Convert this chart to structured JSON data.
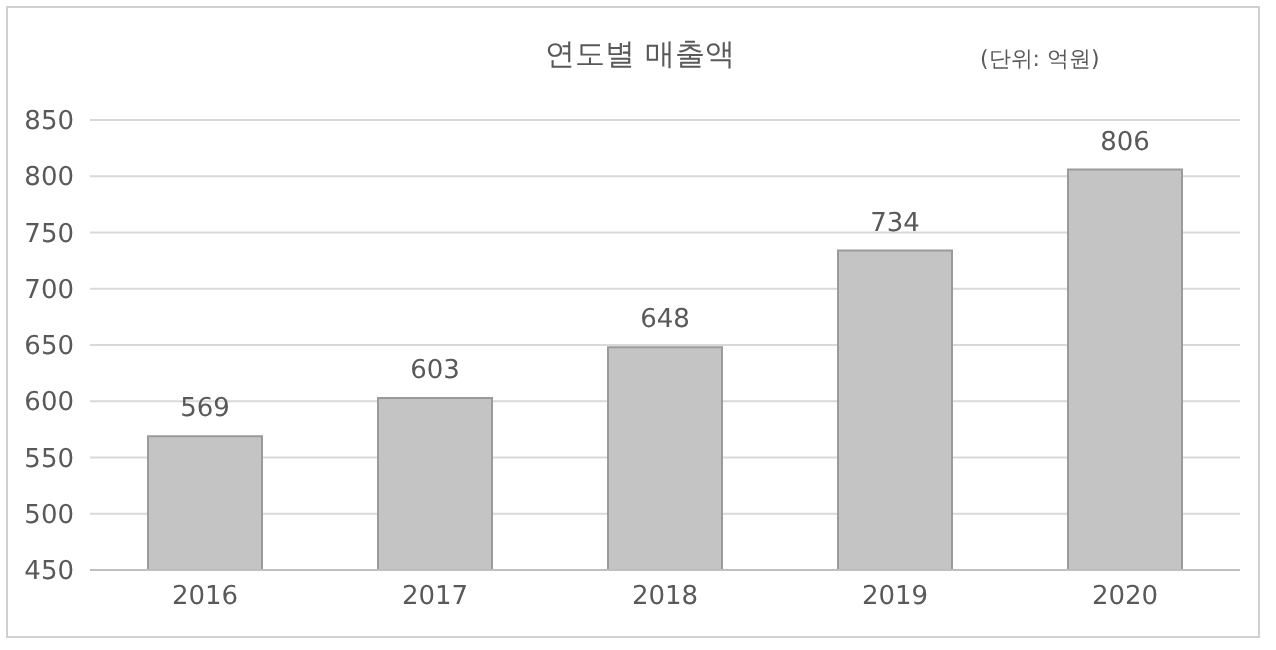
{
  "chart_data": {
    "type": "bar",
    "title": "연도별 매출액",
    "annotations": [
      "(단위: 억원)"
    ],
    "categories": [
      "2016",
      "2017",
      "2018",
      "2019",
      "2020"
    ],
    "values": [
      569,
      603,
      648,
      734,
      806
    ],
    "color": "#c4c4c4",
    "ylim": [
      450,
      850
    ],
    "yticks": [
      450,
      500,
      550,
      600,
      650,
      700,
      750,
      800,
      850
    ],
    "grid": "y",
    "data_labels": true
  }
}
